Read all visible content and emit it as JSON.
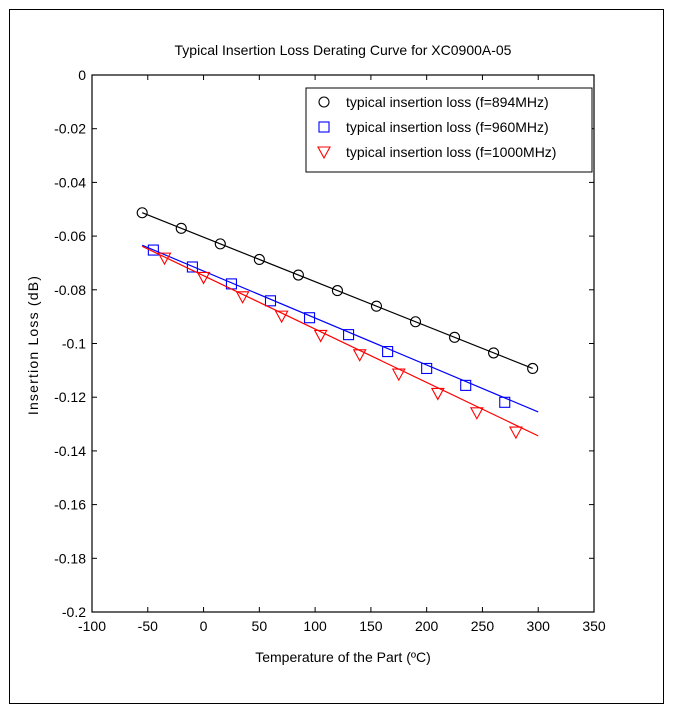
{
  "chart_data": {
    "type": "line",
    "title": "Typical Insertion Loss Derating Curve for XC0900A-05",
    "xlabel": "Temperature of the Part (ºC)",
    "ylabel": "Insertion Loss (dB)",
    "xlim": [
      -100,
      350
    ],
    "ylim": [
      -0.2,
      0
    ],
    "xticks": [
      -100,
      -50,
      0,
      50,
      100,
      150,
      200,
      250,
      300,
      350
    ],
    "yticks": [
      0,
      -0.02,
      -0.04,
      -0.06,
      -0.08,
      -0.1,
      -0.12,
      -0.14,
      -0.16,
      -0.18,
      -0.2
    ],
    "xtick_labels": [
      "-100",
      "-50",
      "0",
      "50",
      "100",
      "150",
      "200",
      "250",
      "300",
      "350"
    ],
    "ytick_labels": [
      "0",
      "-0.02",
      "-0.04",
      "-0.06",
      "-0.08",
      "-0.1",
      "-0.12",
      "-0.14",
      "-0.16",
      "-0.18",
      "-0.2"
    ],
    "grid": true,
    "legend_position": "top-right",
    "series": [
      {
        "name": "typical insertion loss (f=894MHz)",
        "marker": "circle",
        "color": "#000000",
        "x": [
          -55,
          -20,
          15,
          50,
          85,
          120,
          155,
          190,
          225,
          260,
          295
        ],
        "y": [
          -0.0513,
          -0.0571,
          -0.0629,
          -0.0687,
          -0.0745,
          -0.0803,
          -0.0861,
          -0.0919,
          -0.0977,
          -0.1035,
          -0.1093
        ],
        "fit": {
          "x": [
            -55,
            295
          ],
          "y": [
            -0.0513,
            -0.1093
          ]
        }
      },
      {
        "name": "typical insertion loss (f=960MHz)",
        "marker": "square",
        "color": "#0000ff",
        "x": [
          -45,
          -10,
          25,
          60,
          95,
          130,
          165,
          200,
          235,
          270
        ],
        "y": [
          -0.0652,
          -0.0715,
          -0.0778,
          -0.0841,
          -0.0904,
          -0.0967,
          -0.103,
          -0.1093,
          -0.1156,
          -0.1219
        ],
        "fit": {
          "x": [
            -55,
            300
          ],
          "y": [
            -0.0634,
            -0.1255
          ]
        }
      },
      {
        "name": "typical insertion loss (f=1000MHz)",
        "marker": "triangle-down",
        "color": "#ff0000",
        "x": [
          -35,
          0,
          35,
          70,
          105,
          140,
          175,
          210,
          245,
          280
        ],
        "y": [
          -0.0682,
          -0.0754,
          -0.0826,
          -0.0898,
          -0.097,
          -0.1042,
          -0.1114,
          -0.1186,
          -0.1258,
          -0.133
        ],
        "fit": {
          "x": [
            -55,
            300
          ],
          "y": [
            -0.0638,
            -0.1344
          ]
        }
      }
    ]
  }
}
